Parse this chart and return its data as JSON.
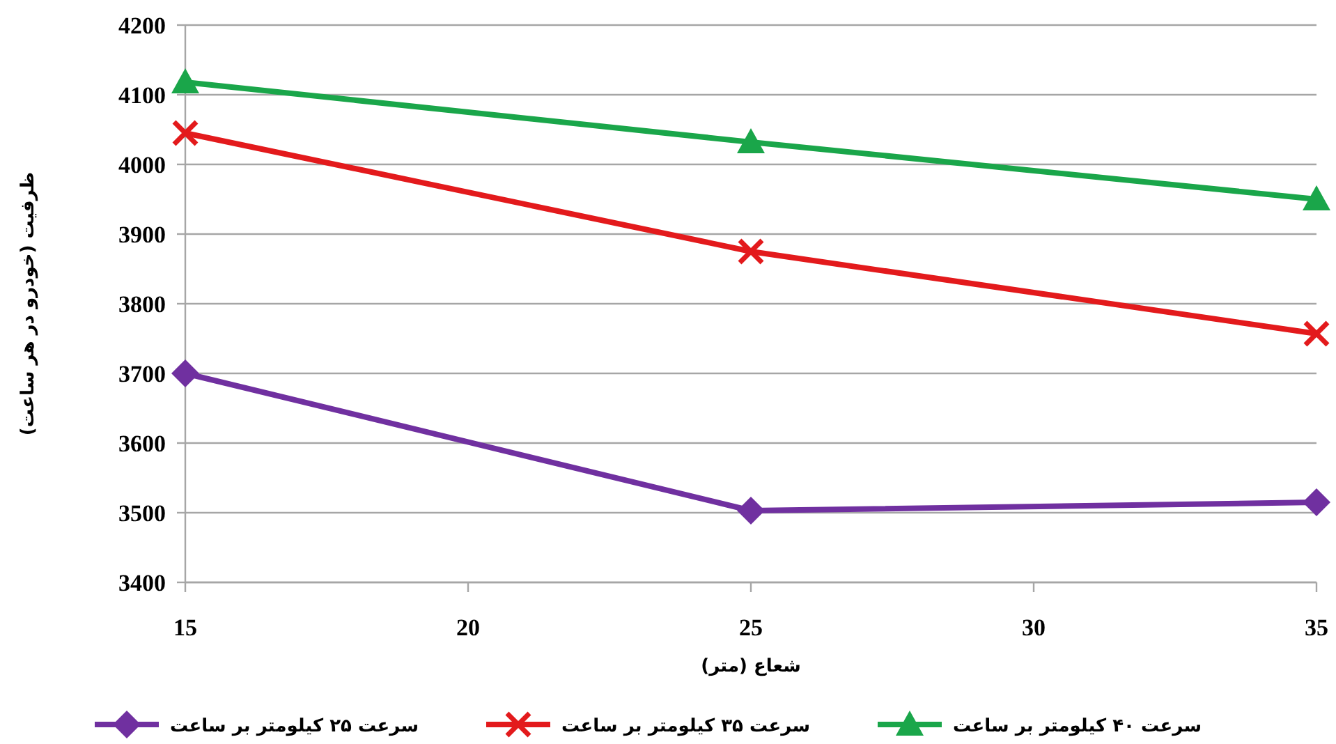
{
  "chart_data": {
    "type": "line",
    "xlabel": "شعاع (متر)",
    "ylabel": "ظرفیت (خودرو در هر ساعت)",
    "x": [
      15,
      25,
      35
    ],
    "series": [
      {
        "name": "سرعت ۲۵ کیلومتر بر ساعت",
        "color": "#7030a0",
        "marker": "diamond",
        "values": [
          3700,
          3503,
          3515
        ]
      },
      {
        "name": "سرعت ۳۵ کیلومتر بر ساعت",
        "color": "#e31a1c",
        "marker": "cross",
        "values": [
          4045,
          3875,
          3757
        ]
      },
      {
        "name": "سرعت ۴۰ کیلومتر بر ساعت",
        "color": "#1aa64a",
        "marker": "triangle",
        "values": [
          4118,
          4032,
          3950
        ]
      }
    ],
    "xlim": [
      15,
      35
    ],
    "xticks": [
      15,
      20,
      25,
      30,
      35
    ],
    "ylim": [
      3400,
      4200
    ],
    "yticks": [
      3400,
      3500,
      3600,
      3700,
      3800,
      3900,
      4000,
      4100,
      4200
    ],
    "grid": "y",
    "legend": "bottom"
  }
}
